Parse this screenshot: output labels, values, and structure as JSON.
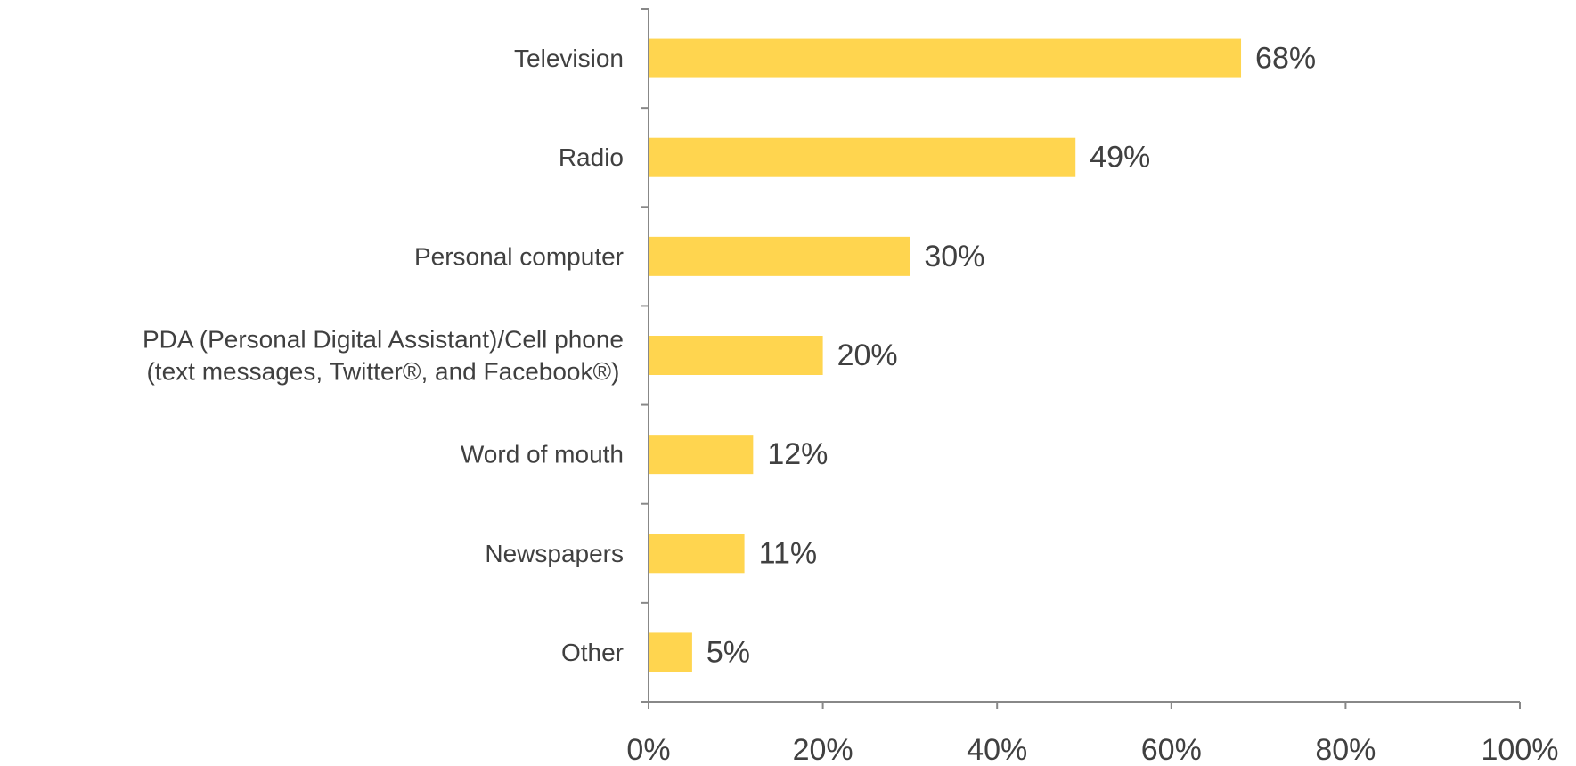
{
  "chart_data": {
    "type": "bar",
    "orientation": "horizontal",
    "categories": [
      "Television",
      "Radio",
      "Personal computer",
      "PDA (Personal Digital Assistant)/Cell phone (text messages, Twitter®, and Facebook®)",
      "Word of mouth",
      "Newspapers",
      "Other"
    ],
    "values": [
      68,
      49,
      30,
      20,
      12,
      11,
      5
    ],
    "data_labels": [
      "68%",
      "49%",
      "30%",
      "20%",
      "12%",
      "11%",
      "5%"
    ],
    "x_ticks": [
      "0%",
      "20%",
      "40%",
      "60%",
      "80%",
      "100%"
    ],
    "xlim": [
      0,
      100
    ],
    "bar_color": "#FFD54F",
    "text_color": "#404040",
    "axis_color": "#888888",
    "grid": false,
    "legend": "none",
    "title": "",
    "xlabel": "",
    "ylabel": ""
  }
}
